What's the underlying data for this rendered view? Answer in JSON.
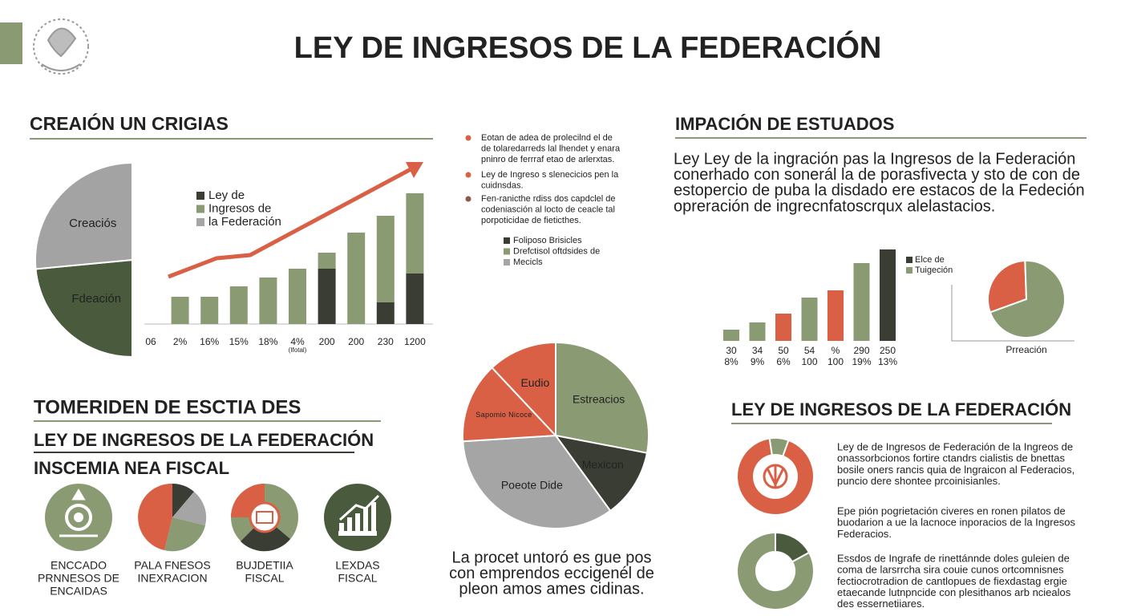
{
  "header": {
    "title": "LEY DE INGRESOS DE LA FEDERACIÓN"
  },
  "sections": {
    "right_top": "IMPACIÓN DE ESTUADOS",
    "left_bottom": [
      "TOMERIDEN DE ESCTIA DES",
      "LEY DE INGRESOS DE LA FEDERACIÓN",
      "INSCEMIA NEA FISCAL"
    ],
    "right_bottom": "LEY DE INGRESOS DE LA FEDERACIÓN"
  },
  "bullets": [
    [
      "Eotan de adea de prolecilnd el de",
      "de tolaredarreds lal lhendet y enara",
      "pninro de ferrraf etao de arlerxtas."
    ],
    [
      "Ley de Ingreso s slenecicios pen la",
      "cuidnsdas."
    ],
    [
      "Fen-ranicthe rdiss dos capdclel de",
      "codeniasción al locto de ceacle tal",
      "porpoticidae de fieticthes."
    ]
  ],
  "bullet_colors": [
    "#d95f45",
    "#d95f45",
    "#8a5a4a"
  ],
  "bullet_legend": [
    {
      "name": "Foliposo Brisicles",
      "color": "#3a3d33"
    },
    {
      "name": "Drefctisol oftdsides de",
      "color": "#8a9b74"
    },
    {
      "name": "Mecicls",
      "color": "#a5a5a5"
    }
  ],
  "intro": [
    "Ley Ley de la ingración pas la Ingresos de la Federación",
    "conerhado con sonerál la de porasfivecta y sto de con de",
    "estopercio de puba la disdado ere estacos de la Fedeción",
    "opreración de ingrecnfatoscrqux alelastacios."
  ],
  "icons": [
    [
      "ENCCADO",
      "PRNNESOS DE",
      "ENCAIDAS"
    ],
    [
      "PALA FNESOS",
      "INEXRACION"
    ],
    [
      "BUJDETIIA",
      "FISCAL"
    ],
    [
      "LEXDAS",
      "FISCAL"
    ]
  ],
  "center_caption": [
    "La procet untoró es gue pos",
    "con emprendos eccigenél de",
    "pleon amos ames cidinas."
  ],
  "right_paragraphs": [
    [
      "Ley de de Ingresos de Federación de la Ingreos de",
      "onassorbcionos fortire ctandrs cialistis de bnettas",
      "bosile oners rancis quia de lngraicon al Federacios,",
      "puncio dere shontee prcoinisianles."
    ],
    [
      "Epe pión pogrietación civeres en ronen pilatos de",
      "buodarion a ue la lacnoce inporacios de la Ingresos",
      "Federacios."
    ],
    [
      "Essdos de Ingrafe de rinettánnde doles guleien de",
      "coma de larsrrcha sira couie cunos ortcomnisnes",
      "fectiocrotradion de cantlopues de fiexdastag ergie",
      "etaecande lutnpncide con plesithanos arb nciealos",
      "des essernetiiares."
    ]
  ],
  "chart_data": [
    {
      "type": "pie",
      "title": "CREAIÓN UN CRIGIAS",
      "semicircle": true,
      "start_angle": 180,
      "labels": [
        "Fdeación",
        "Creaciós"
      ],
      "values": [
        47,
        53
      ],
      "colors": [
        "#4a5a3c",
        "#a3a3a3"
      ]
    },
    {
      "type": "bar",
      "stacked": true,
      "ylim": [
        0,
        180
      ],
      "categories": [
        "06",
        "2%",
        "16%",
        "15%",
        "18%",
        "4%",
        "200",
        "200",
        "230",
        "1200"
      ],
      "x_note": "(Ifotal)",
      "series": [
        {
          "name": "Ley de",
          "color": "#3a3d33",
          "values": [
            null,
            null,
            null,
            null,
            null,
            null,
            69,
            null,
            27,
            63
          ]
        },
        {
          "name": "Ingresos de",
          "color": "#8a9b74",
          "values": [
            null,
            34,
            34,
            47,
            58,
            69,
            20,
            114,
            108,
            100
          ]
        },
        {
          "name": "la Federación",
          "color": "#a5a5a5",
          "values": [
            null,
            null,
            null,
            null,
            null,
            null,
            null,
            null,
            null,
            null
          ]
        }
      ]
    },
    {
      "type": "bar",
      "ylim": [
        0,
        120
      ],
      "categories": [
        "30",
        "34",
        "50",
        "54",
        "%",
        "290",
        "250"
      ],
      "sublabels": [
        "8%",
        "9%",
        "6%",
        "100",
        "100",
        "19%",
        "13%"
      ],
      "values": [
        14,
        23,
        34,
        54,
        63,
        97,
        114
      ],
      "colors": [
        "#8a9b74",
        "#8a9b74",
        "#d95f45",
        "#8a9b74",
        "#d95f45",
        "#8a9b74",
        "#3a3d33"
      ],
      "legend": [
        {
          "name": "Elce de",
          "color": "#3a3d33"
        },
        {
          "name": "Tuigeción",
          "color": "#8a9b74"
        }
      ]
    },
    {
      "type": "pie",
      "title": "Prreación",
      "start_angle": 250,
      "values": [
        30,
        70
      ],
      "colors": [
        "#d95f45",
        "#8a9b74"
      ]
    },
    {
      "type": "pie",
      "start_angle": 0,
      "labels": [
        "Estreacios",
        "Mexicon",
        "Poeote Dide",
        "Sapomio Nicoce",
        "Eudio"
      ],
      "values": [
        28,
        12,
        34,
        14,
        12
      ],
      "colors": [
        "#8a9b74",
        "#3a3d33",
        "#a5a5a5",
        "#d95f45",
        "#d95f45"
      ]
    },
    {
      "type": "donut",
      "start_angle": 20,
      "values": [
        92,
        8
      ],
      "colors": [
        "#d95f45",
        "#8a9b74"
      ]
    },
    {
      "type": "donut",
      "start_angle": 0,
      "values": [
        17,
        83
      ],
      "colors": [
        "#4a5a3c",
        "#8a9b74"
      ]
    }
  ]
}
